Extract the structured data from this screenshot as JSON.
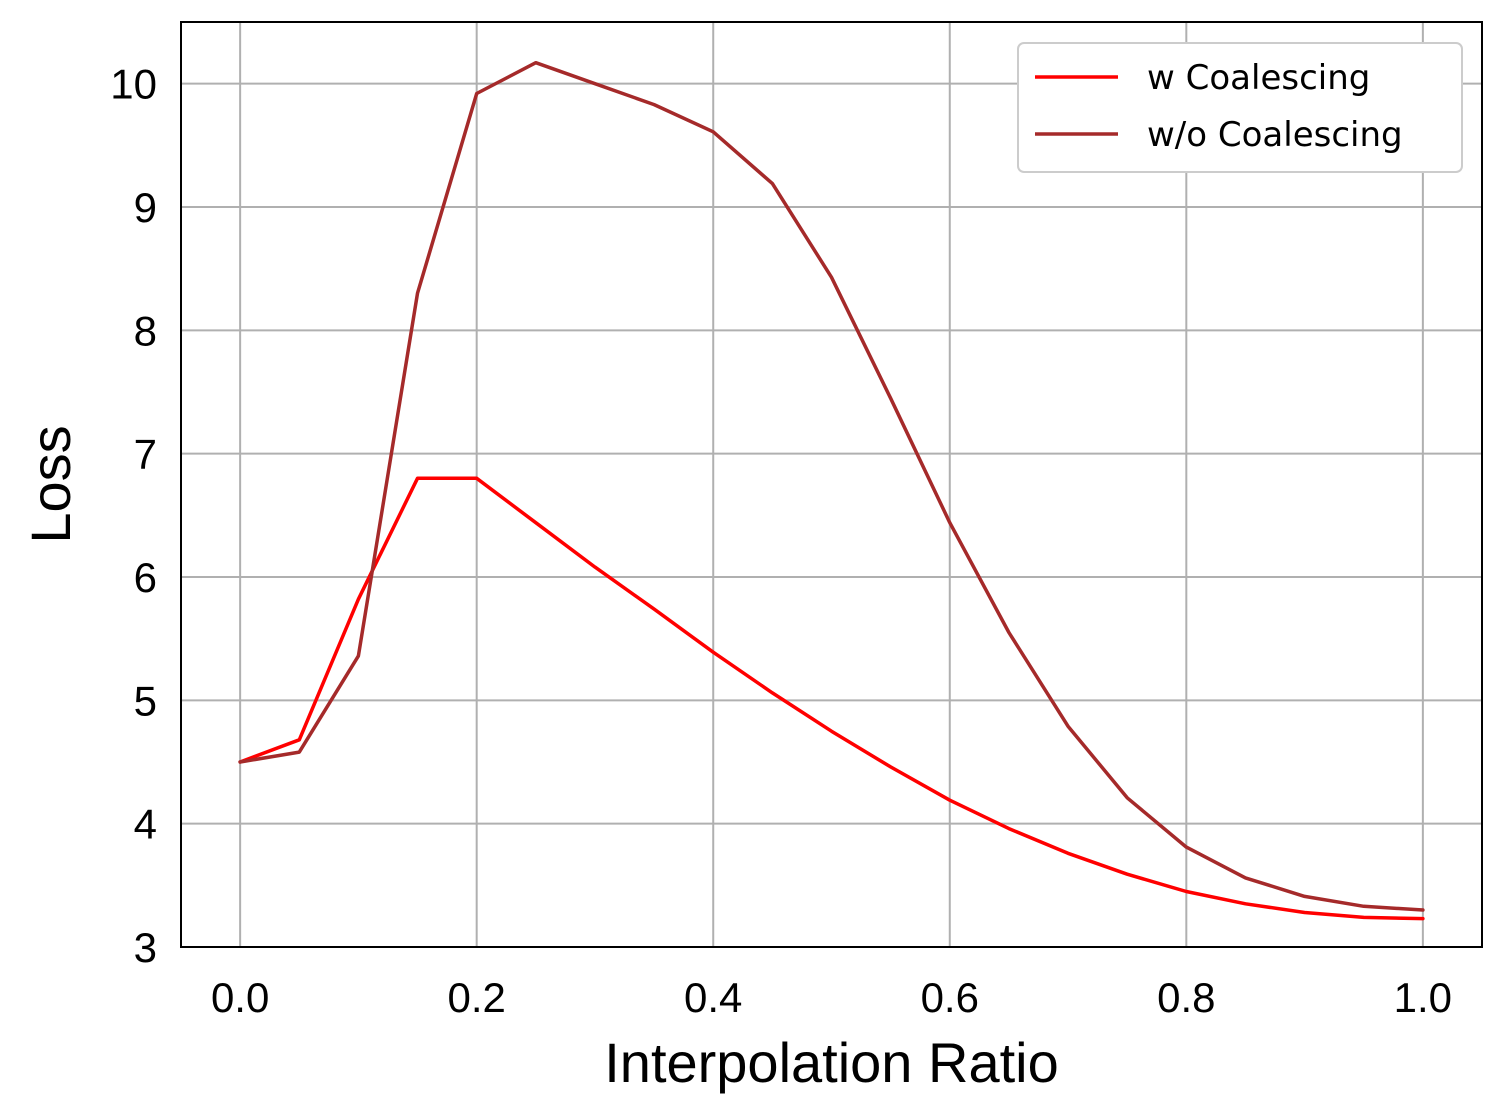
{
  "chart_data": {
    "type": "line",
    "title": "",
    "xlabel": "Interpolation Ratio",
    "ylabel": "Loss",
    "xlim": [
      -0.05,
      1.05
    ],
    "ylim": [
      3,
      10.5
    ],
    "xticks": [
      0.0,
      0.2,
      0.4,
      0.6,
      0.8,
      1.0
    ],
    "xtick_labels": [
      "0.0",
      "0.2",
      "0.4",
      "0.6",
      "0.8",
      "1.0"
    ],
    "yticks": [
      3,
      4,
      5,
      6,
      7,
      8,
      9,
      10
    ],
    "ytick_labels": [
      "3",
      "4",
      "5",
      "6",
      "7",
      "8",
      "9",
      "10"
    ],
    "grid": true,
    "legend_position": "top-right",
    "x": [
      0.0,
      0.05,
      0.1,
      0.15,
      0.2,
      0.25,
      0.3,
      0.35,
      0.4,
      0.45,
      0.5,
      0.55,
      0.6,
      0.65,
      0.7,
      0.75,
      0.8,
      0.85,
      0.9,
      0.95,
      1.0
    ],
    "series": [
      {
        "name": "w Coalescing",
        "color": "#ff0000",
        "values": [
          4.5,
          4.68,
          5.82,
          6.8,
          6.8,
          6.44,
          6.08,
          5.74,
          5.39,
          5.06,
          4.75,
          4.46,
          4.19,
          3.96,
          3.76,
          3.59,
          3.45,
          3.35,
          3.28,
          3.24,
          3.23
        ]
      },
      {
        "name": "w/o Coalescing",
        "color": "#a52a2a",
        "values": [
          4.5,
          4.58,
          5.36,
          8.3,
          9.92,
          10.17,
          10.0,
          9.83,
          9.61,
          9.19,
          8.43,
          7.45,
          6.44,
          5.55,
          4.79,
          4.21,
          3.81,
          3.56,
          3.41,
          3.33,
          3.3
        ]
      }
    ]
  }
}
